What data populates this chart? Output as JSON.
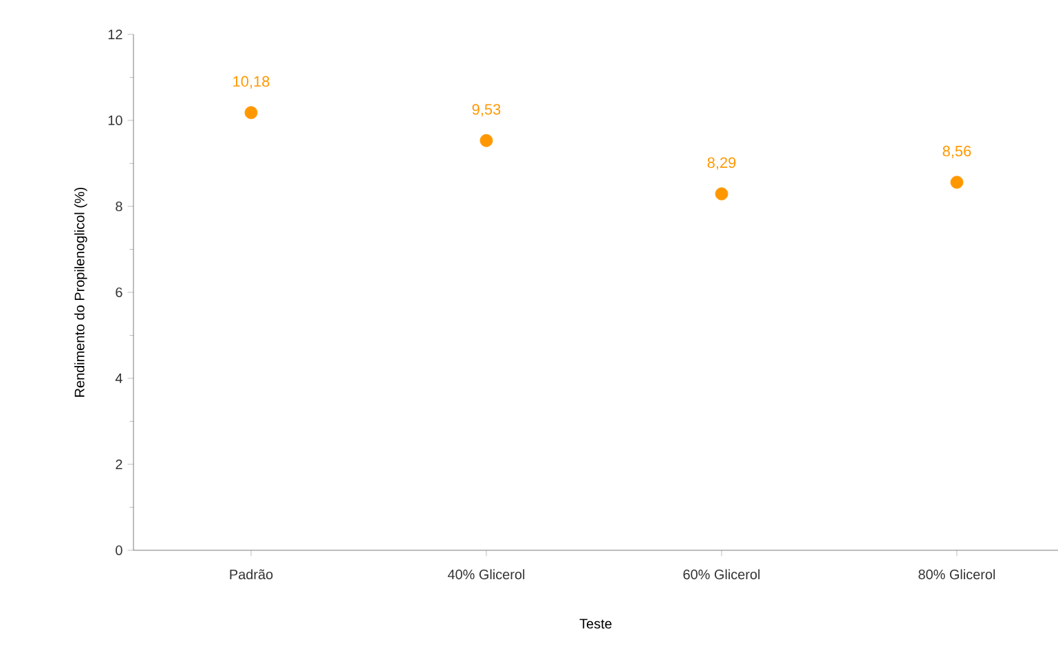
{
  "chart_data": {
    "type": "scatter",
    "xlabel": "Teste",
    "ylabel": "Rendimento do Propilenoglicol (%)",
    "categories": [
      "Padrão",
      "40% Glicerol",
      "60% Glicerol",
      "80% Glicerol"
    ],
    "values": [
      10.18,
      9.53,
      8.29,
      8.56
    ],
    "value_labels": [
      "10,18",
      "9,53",
      "8,29",
      "8,56"
    ],
    "color": "#ff9800",
    "marker": "circle",
    "ylim": [
      0,
      12
    ],
    "yticks": [
      0,
      2,
      4,
      6,
      8,
      10,
      12
    ]
  }
}
